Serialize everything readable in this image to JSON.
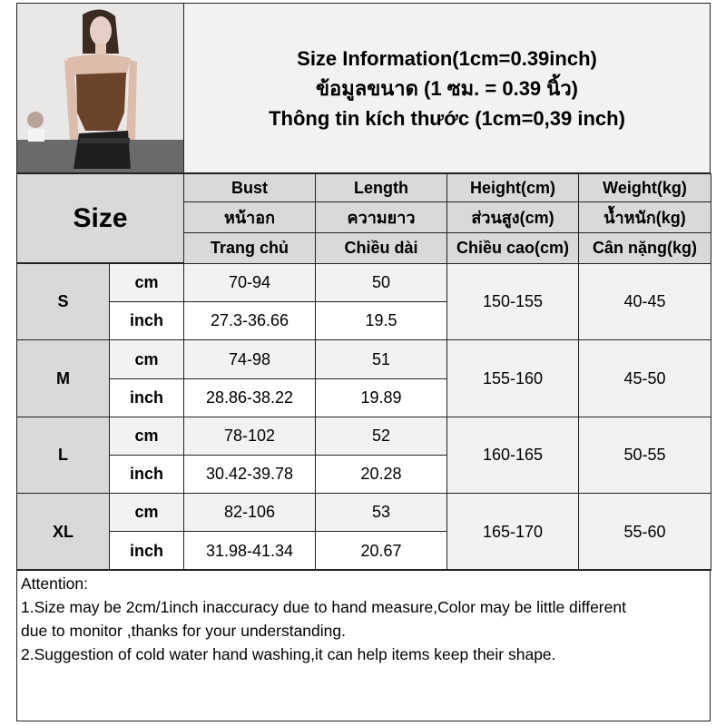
{
  "title": {
    "line_en": "Size Information(1cm=0.39inch)",
    "line_th": "ข้อมูลขนาด (1 ซม. = 0.39 นิ้ว)",
    "line_vi": "Thông tin kích thước (1cm=0,39 inch)"
  },
  "photo": {
    "description_icon": "model-photo"
  },
  "header": {
    "size_label": "Size",
    "columns": [
      {
        "en": "Bust",
        "th": "หน้าอก",
        "vi": "Trang chủ"
      },
      {
        "en": "Length",
        "th": "ความยาว",
        "vi": "Chiều dài"
      },
      {
        "en": "Height(cm)",
        "th": "ส่วนสูง(cm)",
        "vi": "Chiều cao(cm)"
      },
      {
        "en": "Weight(kg)",
        "th": "น้ำหนัก(kg)",
        "vi": "Cân nặng(kg)"
      }
    ]
  },
  "rows": [
    {
      "size": "S",
      "cm_label": "cm",
      "inch_label": "inch",
      "bust_cm": "70-94",
      "length_cm": "50",
      "bust_inch": "27.3-36.66",
      "length_inch": "19.5",
      "height": "150-155",
      "weight": "40-45"
    },
    {
      "size": "M",
      "cm_label": "cm",
      "inch_label": "inch",
      "bust_cm": "74-98",
      "length_cm": "51",
      "bust_inch": "28.86-38.22",
      "length_inch": "19.89",
      "height": "155-160",
      "weight": "45-50"
    },
    {
      "size": "L",
      "cm_label": "cm",
      "inch_label": "inch",
      "bust_cm": "78-102",
      "length_cm": "52",
      "bust_inch": "30.42-39.78",
      "length_inch": "20.28",
      "height": "160-165",
      "weight": "50-55"
    },
    {
      "size": "XL",
      "cm_label": "cm",
      "inch_label": "inch",
      "bust_cm": "82-106",
      "length_cm": "53",
      "bust_inch": "31.98-41.34",
      "length_inch": "20.67",
      "height": "165-170",
      "weight": "55-60"
    }
  ],
  "notes": {
    "heading": "Attention:",
    "line1": "1.Size may be 2cm/1inch inaccuracy due to hand measure,Color may be little different",
    "line2": "due to monitor ,thanks for your understanding.",
    "line3": "2.Suggestion of cold water hand washing,it can help items keep their shape."
  }
}
